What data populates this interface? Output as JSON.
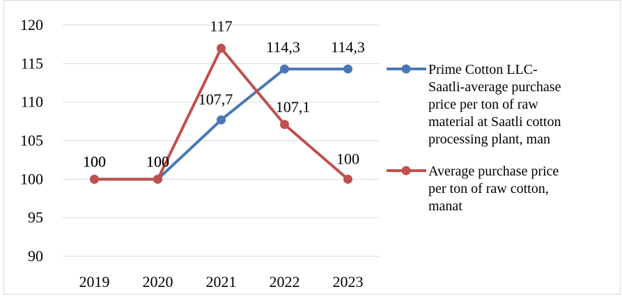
{
  "chart_data": {
    "type": "line",
    "categories": [
      "2019",
      "2020",
      "2021",
      "2022",
      "2023"
    ],
    "ylim": [
      90,
      120
    ],
    "yticks": [
      90,
      95,
      100,
      105,
      110,
      115,
      120
    ],
    "grid": true,
    "legend_position": "right",
    "series": [
      {
        "name": "Prime Cotton LLC-Saatli-average purchase price per ton of raw material at Saatli cotton processing plant, man",
        "legend_lines": [
          "Prime Cotton LLC-",
          "Saatli-average purchase",
          "price per ton of raw",
          "material at Saatli cotton",
          "processing plant, man"
        ],
        "values": [
          100,
          100,
          107.7,
          114.3,
          114.3
        ],
        "labels": [
          "100",
          "100",
          "107,7",
          "114,3",
          "114,3"
        ],
        "color": "#4a78b5"
      },
      {
        "name": "Average purchase price per ton of raw cotton, manat",
        "legend_lines": [
          "Average purchase price",
          "per ton of raw cotton,",
          "manat"
        ],
        "values": [
          100,
          100,
          117,
          107.1,
          100
        ],
        "labels": [
          "100",
          "100",
          "117",
          "107,1",
          "100"
        ],
        "color": "#c0504d"
      }
    ]
  }
}
